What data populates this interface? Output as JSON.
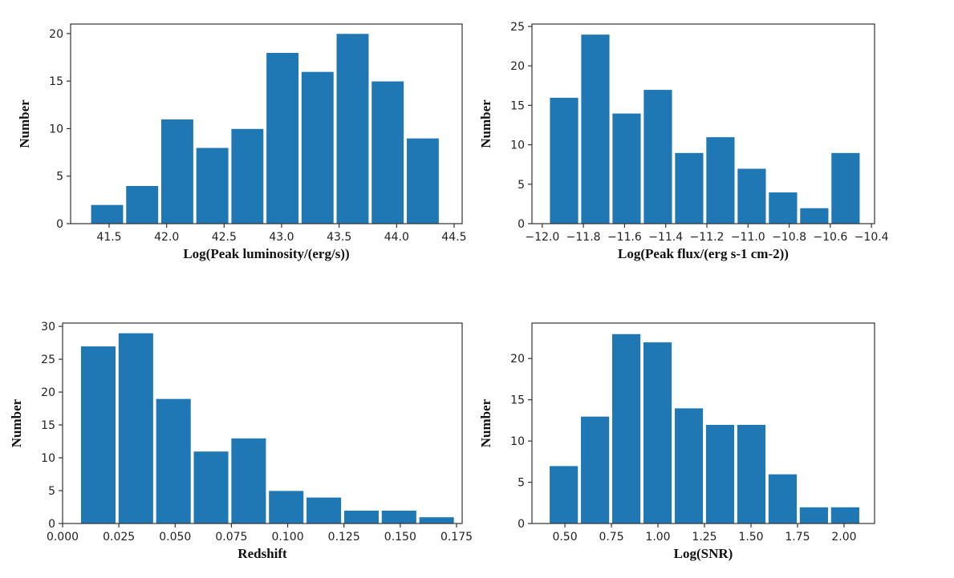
{
  "colors": {
    "bar": "#1f77b4",
    "frame": "#333333"
  },
  "chart_data": [
    {
      "id": "luminosity",
      "type": "bar",
      "title": "",
      "xlabel": "Log(Peak luminosity/(erg/s))",
      "ylabel": "Number",
      "bin_edges": [
        41.33,
        41.635,
        41.94,
        42.245,
        42.55,
        42.855,
        43.16,
        43.465,
        43.77,
        44.075,
        44.38
      ],
      "values": [
        2,
        4,
        11,
        8,
        10,
        18,
        16,
        20,
        15,
        9
      ],
      "xlim": [
        41.165,
        44.57
      ],
      "ylim": [
        0,
        21.0
      ],
      "xticks": [
        41.5,
        42.0,
        42.5,
        43.0,
        43.5,
        44.0,
        44.5
      ],
      "xtick_labels": [
        "41.5",
        "42.0",
        "42.5",
        "43.0",
        "43.5",
        "44.0",
        "44.5"
      ],
      "yticks": [
        0,
        5,
        10,
        15,
        20
      ],
      "ytick_labels": [
        "0",
        "5",
        "10",
        "15",
        "20"
      ],
      "grid": false,
      "legend": "none"
    },
    {
      "id": "flux",
      "type": "bar",
      "title": "",
      "xlabel": "Log(Peak flux/(erg s-1 cm-2))",
      "ylabel": "Number",
      "bin_edges": [
        -11.97,
        -11.818,
        -11.666,
        -11.514,
        -11.362,
        -11.21,
        -11.058,
        -10.906,
        -10.754,
        -10.602,
        -10.45
      ],
      "values": [
        16,
        24,
        14,
        17,
        9,
        11,
        7,
        4,
        2,
        9
      ],
      "xlim": [
        -12.05,
        -10.385
      ],
      "ylim": [
        0,
        25.3
      ],
      "xticks": [
        -12.0,
        -11.8,
        -11.6,
        -11.4,
        -11.2,
        -11.0,
        -10.8,
        -10.6,
        -10.4
      ],
      "xtick_labels": [
        "−12.0",
        "−11.8",
        "−11.6",
        "−11.4",
        "−11.2",
        "−11.0",
        "−10.8",
        "−10.6",
        "−10.4"
      ],
      "yticks": [
        0,
        5,
        10,
        15,
        20,
        25
      ],
      "ytick_labels": [
        "0",
        "5",
        "10",
        "15",
        "20",
        "25"
      ],
      "grid": false,
      "legend": "none"
    },
    {
      "id": "redshift",
      "type": "bar",
      "title": "",
      "xlabel": "Redshift",
      "ylabel": "Number",
      "bin_edges": [
        0.0075,
        0.0242,
        0.0409,
        0.0576,
        0.0743,
        0.091,
        0.1077,
        0.1244,
        0.1411,
        0.1578,
        0.1745
      ],
      "values": [
        27,
        29,
        19,
        11,
        13,
        5,
        4,
        2,
        2,
        1
      ],
      "xlim": [
        0.0,
        0.1775
      ],
      "ylim": [
        0,
        30.5
      ],
      "xticks": [
        0.0,
        0.025,
        0.05,
        0.075,
        0.1,
        0.125,
        0.15,
        0.175
      ],
      "xtick_labels": [
        "0.000",
        "0.025",
        "0.050",
        "0.075",
        "0.100",
        "0.125",
        "0.150",
        "0.175"
      ],
      "yticks": [
        0,
        5,
        10,
        15,
        20,
        25,
        30
      ],
      "ytick_labels": [
        "0",
        "5",
        "10",
        "15",
        "20",
        "25",
        "30"
      ],
      "grid": false,
      "legend": "none"
    },
    {
      "id": "snr",
      "type": "bar",
      "title": "",
      "xlabel": "Log(SNR)",
      "ylabel": "Number",
      "bin_edges": [
        0.41,
        0.578,
        0.746,
        0.914,
        1.082,
        1.25,
        1.418,
        1.586,
        1.754,
        1.922,
        2.09
      ],
      "values": [
        7,
        13,
        23,
        22,
        14,
        12,
        12,
        6,
        2,
        2
      ],
      "xlim": [
        0.323,
        2.164
      ],
      "ylim": [
        0,
        24.3
      ],
      "xticks": [
        0.5,
        0.75,
        1.0,
        1.25,
        1.5,
        1.75,
        2.0
      ],
      "xtick_labels": [
        "0.50",
        "0.75",
        "1.00",
        "1.25",
        "1.50",
        "1.75",
        "2.00"
      ],
      "yticks": [
        0,
        5,
        10,
        15,
        20
      ],
      "ytick_labels": [
        "0",
        "5",
        "10",
        "15",
        "20"
      ],
      "grid": false,
      "legend": "none"
    }
  ]
}
